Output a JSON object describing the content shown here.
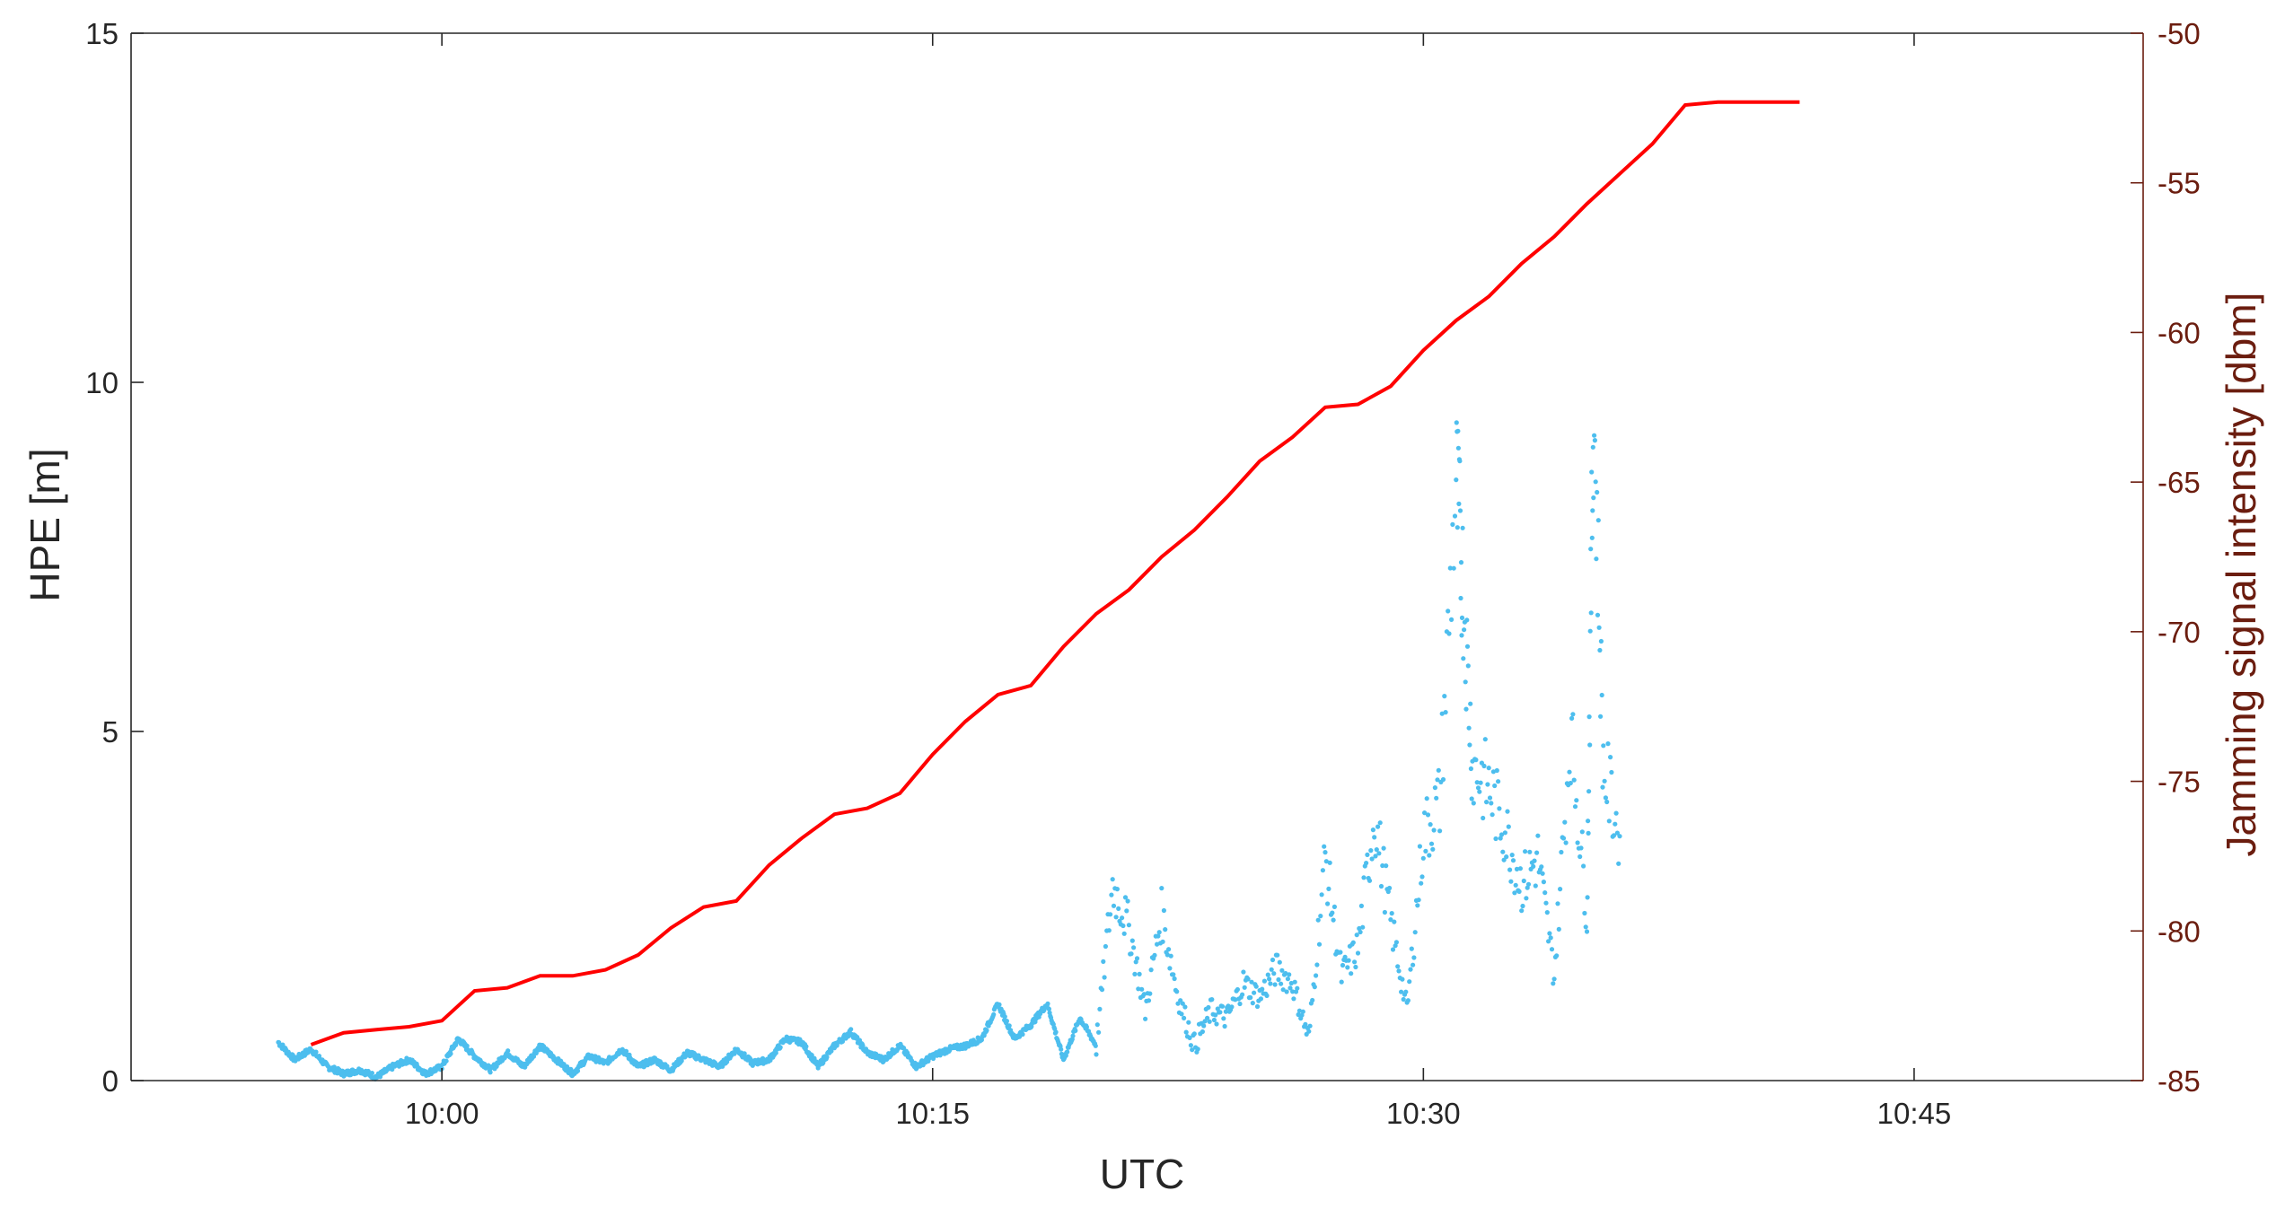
{
  "chart_data": {
    "type": "line",
    "xlabel": "UTC",
    "ylabel": "HPE [m]",
    "ylabel_right": "Jamming signal intensity [dbm]",
    "x_ticks": [
      "10:00",
      "10:15",
      "10:30",
      "10:45"
    ],
    "x_tick_minutes": [
      600,
      615,
      630,
      645
    ],
    "xlim": [
      "09:50:30",
      "10:52:00"
    ],
    "ylim": [
      0,
      15
    ],
    "y_ticks": [
      "0",
      "5",
      "10",
      "15"
    ],
    "y_tick_values": [
      0,
      5,
      10,
      15
    ],
    "ylim_right": [
      -85,
      -50
    ],
    "y_ticks_right": [
      "-50",
      "-55",
      "-60",
      "-65",
      "-70",
      "-75",
      "-80",
      "-85"
    ],
    "y_tick_values_right": [
      -50,
      -55,
      -60,
      -65,
      -70,
      -75,
      -80,
      -85
    ],
    "grid": false,
    "legend": "none",
    "colors": {
      "hpe": "#4dbeee",
      "jamming": "#ff0000",
      "right_axis": "#6b1d0f",
      "axis": "#262626"
    },
    "series": [
      {
        "axis": "right",
        "style": "line",
        "x": [
          "09:56",
          "09:57",
          "09:58",
          "09:59",
          "10:00",
          "10:01",
          "10:02",
          "10:03",
          "10:04",
          "10:05",
          "10:06",
          "10:07",
          "10:08",
          "10:09",
          "10:10",
          "10:11",
          "10:12",
          "10:13",
          "10:14",
          "10:15",
          "10:16",
          "10:17",
          "10:18",
          "10:19",
          "10:20",
          "10:21",
          "10:22",
          "10:23",
          "10:24",
          "10:25",
          "10:26",
          "10:27",
          "10:28",
          "10:29",
          "10:30",
          "10:31",
          "10:32",
          "10:33",
          "10:34",
          "10:35",
          "10:36",
          "10:37",
          "10:38",
          "10:39",
          "10:41.5"
        ],
        "y": [
          -83.8,
          -83.4,
          -83.3,
          -83.2,
          -83.0,
          -82.0,
          -81.9,
          -81.5,
          -81.5,
          -81.3,
          -80.8,
          -79.9,
          -79.2,
          -79.0,
          -77.8,
          -76.9,
          -76.1,
          -75.9,
          -75.4,
          -74.1,
          -73.0,
          -72.1,
          -71.8,
          -70.5,
          -69.4,
          -68.6,
          -67.5,
          -66.6,
          -65.5,
          -64.3,
          -63.5,
          -62.5,
          -62.4,
          -61.8,
          -60.6,
          -59.6,
          -58.8,
          -57.7,
          -56.8,
          -55.7,
          -54.7,
          -53.7,
          -52.4,
          -52.3,
          -52.3
        ]
      },
      {
        "axis": "left",
        "style": "markers",
        "x": [
          "09:55.0",
          "09:55.5",
          "09:56.0",
          "09:56.5",
          "09:57.0",
          "09:57.5",
          "09:58.0",
          "09:58.5",
          "09:59.0",
          "09:59.5",
          "10:00.0",
          "10:00.5",
          "10:01.0",
          "10:01.5",
          "10:02.0",
          "10:02.5",
          "10:03.0",
          "10:03.5",
          "10:04.0",
          "10:04.5",
          "10:05.0",
          "10:05.5",
          "10:06.0",
          "10:06.5",
          "10:07.0",
          "10:07.5",
          "10:08.0",
          "10:08.5",
          "10:09.0",
          "10:09.5",
          "10:10.0",
          "10:10.5",
          "10:11.0",
          "10:11.5",
          "10:12.0",
          "10:12.5",
          "10:13.0",
          "10:13.5",
          "10:14.0",
          "10:14.5",
          "10:15.0",
          "10:15.5",
          "10:16.0",
          "10:16.5",
          "10:17.0",
          "10:17.5",
          "10:18.0",
          "10:18.5",
          "10:19.0",
          "10:19.5",
          "10:20.0",
          "10:20.5",
          "10:21.0",
          "10:21.5",
          "10:22.0",
          "10:22.5",
          "10:23.0",
          "10:23.5",
          "10:24.0",
          "10:24.5",
          "10:25.0",
          "10:25.5",
          "10:26.0",
          "10:26.5",
          "10:27.0",
          "10:27.5",
          "10:28.0",
          "10:28.5",
          "10:29.0",
          "10:29.5",
          "10:30.0",
          "10:30.5",
          "10:31.0",
          "10:31.2",
          "10:31.5",
          "10:32.0",
          "10:32.5",
          "10:33.0",
          "10:33.5",
          "10:34.0",
          "10:34.5",
          "10:35.0",
          "10:35.2",
          "10:35.5",
          "10:36.0"
        ],
        "y": [
          0.55,
          0.3,
          0.45,
          0.2,
          0.1,
          0.15,
          0.05,
          0.2,
          0.3,
          0.1,
          0.2,
          0.6,
          0.35,
          0.15,
          0.4,
          0.2,
          0.5,
          0.3,
          0.1,
          0.35,
          0.25,
          0.45,
          0.2,
          0.3,
          0.15,
          0.4,
          0.3,
          0.2,
          0.45,
          0.25,
          0.3,
          0.6,
          0.55,
          0.2,
          0.5,
          0.7,
          0.4,
          0.3,
          0.5,
          0.2,
          0.35,
          0.45,
          0.5,
          0.6,
          1.1,
          0.6,
          0.8,
          1.1,
          0.3,
          0.9,
          0.5,
          2.8,
          2.2,
          1.0,
          2.4,
          1.2,
          0.5,
          1.0,
          0.9,
          1.4,
          1.2,
          1.6,
          1.4,
          0.6,
          3.2,
          1.5,
          1.9,
          3.8,
          2.3,
          1.0,
          3.5,
          4.0,
          8.6,
          7.2,
          4.5,
          4.2,
          3.6,
          2.8,
          3.2,
          1.5,
          5.0,
          2.4,
          9.8,
          4.5,
          3.5
        ]
      }
    ]
  }
}
